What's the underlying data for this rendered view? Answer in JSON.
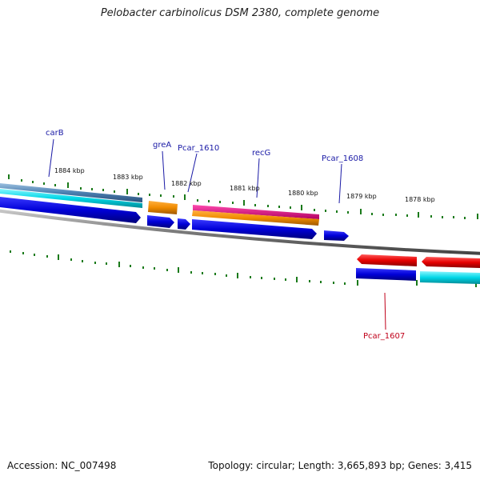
{
  "title": "Pelobacter carbinolicus DSM 2380, complete genome",
  "accession": "Accession: NC_007498",
  "summary": "Topology: circular; Length: 3,665,893 bp; Genes: 3,415",
  "colors": {
    "tick": "#1a7a1a",
    "backbone": "#7a7a7a",
    "forward_cds": "#0a0ae0",
    "orange_track": "#f08c00",
    "magenta_track": "#e0188c",
    "red_track": "#e60000",
    "cyan_track": "#00d6e6",
    "steel_track": "#4a7fb0"
  },
  "kbp_labels": [
    "1884 kbp",
    "1883 kbp",
    "1882 kbp",
    "1881 kbp",
    "1880 kbp",
    "1879 kbp",
    "1878 kbp"
  ],
  "gene_labels": {
    "carB": "carB",
    "greA": "greA",
    "pcar1610": "Pcar_1610",
    "recG": "recG",
    "pcar1608": "Pcar_1608",
    "pcar1607": "Pcar_1607"
  }
}
